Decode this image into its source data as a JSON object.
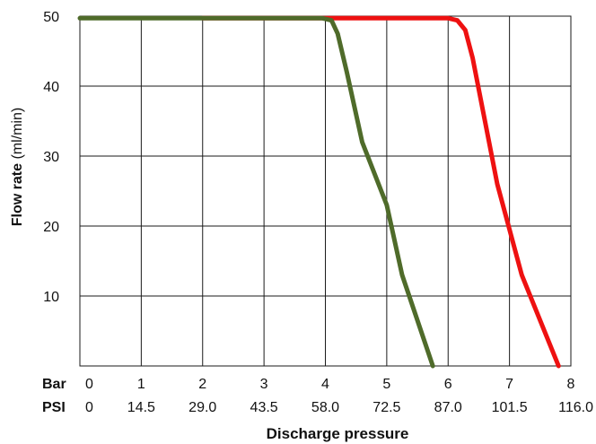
{
  "chart_data": {
    "type": "line",
    "xlabel": "Discharge pressure",
    "ylabel_bold": "Flow rate",
    "ylabel_unit": " (ml/min)",
    "x_row_labels": {
      "bar": "Bar",
      "psi": "PSI"
    },
    "x_ticks_bar": [
      "0",
      "1",
      "2",
      "3",
      "4",
      "5",
      "6",
      "7",
      "8"
    ],
    "x_ticks_psi": [
      "0",
      "14.5",
      "29.0",
      "43.5",
      "58.0",
      "72.5",
      "87.0",
      "101.5",
      "116.0"
    ],
    "y_ticks": [
      "10",
      "20",
      "30",
      "40",
      "50"
    ],
    "xlim": [
      0,
      8
    ],
    "ylim": [
      0,
      50
    ],
    "grid": true,
    "series": [
      {
        "color": "#ee1111",
        "points": [
          [
            2.0,
            49.7
          ],
          [
            6.0,
            49.7
          ],
          [
            6.15,
            49.4
          ],
          [
            6.28,
            48.0
          ],
          [
            6.4,
            44.0
          ],
          [
            6.6,
            35.0
          ],
          [
            6.8,
            26.0
          ],
          [
            7.2,
            13.0
          ],
          [
            7.8,
            0.0
          ]
        ]
      },
      {
        "color": "#4f6b2a",
        "points": [
          [
            0.0,
            49.7
          ],
          [
            3.95,
            49.7
          ],
          [
            4.1,
            49.4
          ],
          [
            4.2,
            47.5
          ],
          [
            4.35,
            42.0
          ],
          [
            4.6,
            32.0
          ],
          [
            5.0,
            23.0
          ],
          [
            5.25,
            13.0
          ],
          [
            5.75,
            0.0
          ]
        ]
      }
    ]
  }
}
